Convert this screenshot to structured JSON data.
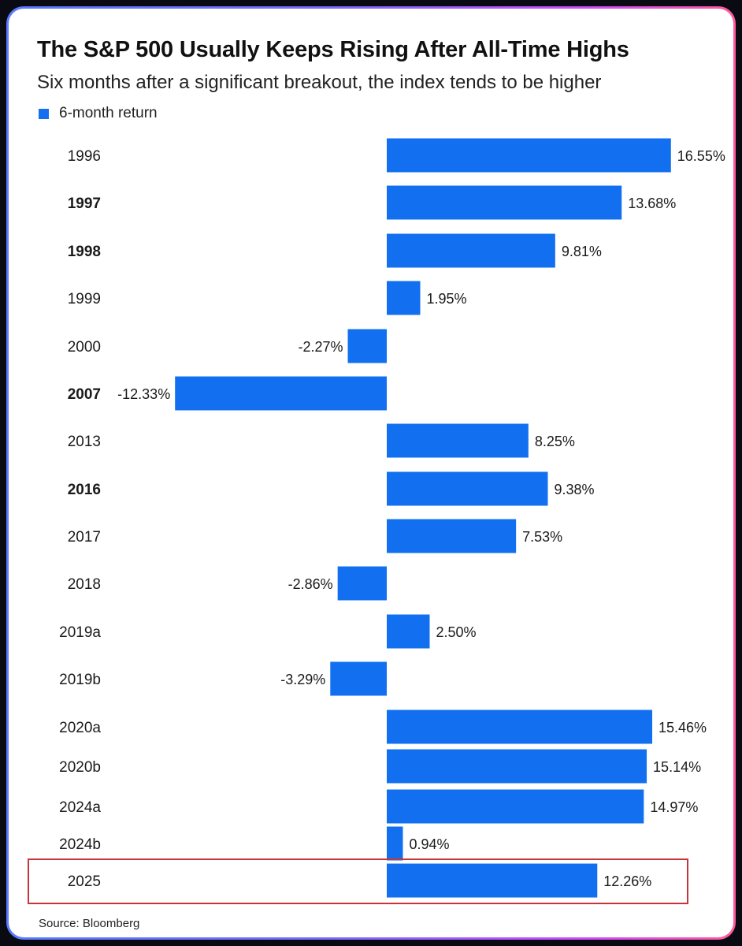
{
  "title": "The S&P 500 Usually Keeps Rising After All-Time Highs",
  "subtitle": "Six months after a significant breakout, the index tends to be higher",
  "source": "Source: Bloomberg",
  "colors": {
    "bar": "#1270f0",
    "highlight": "#c8343b",
    "frame_gradient": [
      "#5a7bff",
      "#ff5a9a"
    ]
  },
  "chart_data": {
    "type": "bar",
    "orientation": "horizontal",
    "categories": [
      "1996",
      "1997",
      "1998",
      "1999",
      "2000",
      "2007",
      "2013",
      "2016",
      "2017",
      "2018",
      "2019a",
      "2019b",
      "2020a",
      "2020b",
      "2024a",
      "2024b",
      "2025"
    ],
    "series": [
      {
        "name": "6-month return",
        "values": [
          16.55,
          13.68,
          9.81,
          1.95,
          -2.27,
          -12.33,
          8.25,
          9.38,
          7.53,
          -2.86,
          2.5,
          -3.29,
          15.46,
          15.14,
          14.97,
          0.94,
          12.26
        ]
      }
    ],
    "value_labels": [
      "16.55%",
      "13.68%",
      "9.81%",
      "1.95%",
      "-2.27%",
      "-12.33%",
      "8.25%",
      "9.38%",
      "7.53%",
      "-2.86%",
      "2.50%",
      "-3.29%",
      "15.46%",
      "15.14%",
      "14.97%",
      "0.94%",
      "12.26%"
    ],
    "bold_categories": [
      "1997",
      "1998",
      "2007",
      "2016"
    ],
    "highlighted_category": "2025",
    "legend": "top-left",
    "grid": false
  }
}
